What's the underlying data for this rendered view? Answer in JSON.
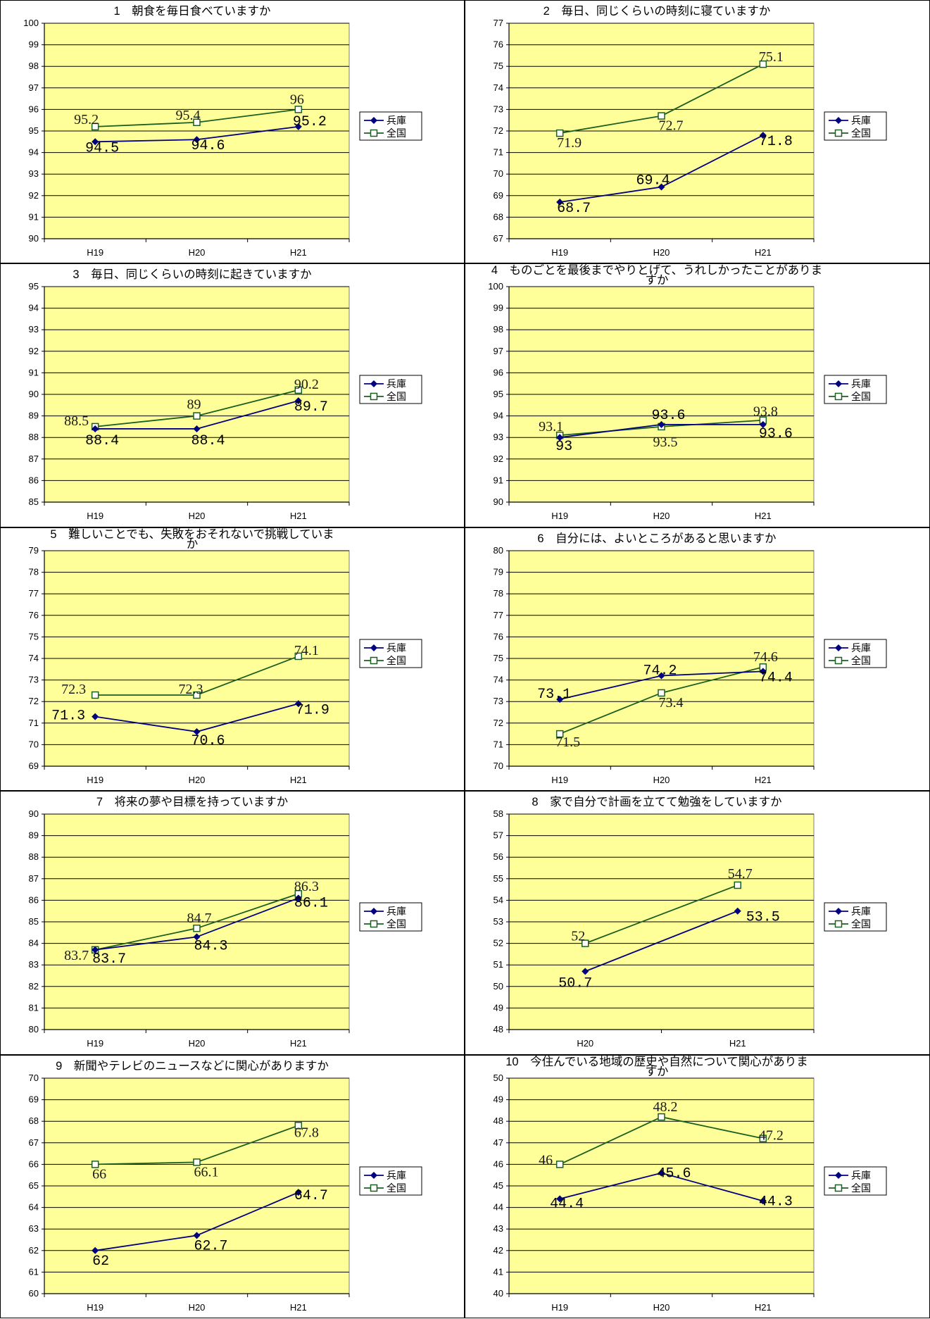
{
  "chart_data": [
    {
      "type": "line",
      "title_lines": [
        "1　朝食を毎日食べていますか"
      ],
      "categories": [
        "H19",
        "H20",
        "H21"
      ],
      "ylim": [
        90,
        100
      ],
      "series": [
        {
          "name": "兵庫",
          "values": [
            94.5,
            94.6,
            95.2
          ],
          "labels": [
            "94.5",
            "94.6",
            "95.2"
          ]
        },
        {
          "name": "全国",
          "values": [
            95.2,
            95.4,
            96
          ],
          "labels": [
            "95.2",
            "95.4",
            "96"
          ]
        }
      ]
    },
    {
      "type": "line",
      "title_lines": [
        "2　毎日、同じくらいの時刻に寝ていますか"
      ],
      "categories": [
        "H19",
        "H20",
        "H21"
      ],
      "ylim": [
        67,
        77
      ],
      "series": [
        {
          "name": "兵庫",
          "values": [
            68.7,
            69.4,
            71.8
          ],
          "labels": [
            "68.7",
            "69.4",
            "71.8"
          ]
        },
        {
          "name": "全国",
          "values": [
            71.9,
            72.7,
            75.1
          ],
          "labels": [
            "71.9",
            "72.7",
            "75.1"
          ]
        }
      ]
    },
    {
      "type": "line",
      "title_lines": [
        "3　毎日、同じくらいの時刻に起きていますか"
      ],
      "categories": [
        "H19",
        "H20",
        "H21"
      ],
      "ylim": [
        85,
        95
      ],
      "series": [
        {
          "name": "兵庫",
          "values": [
            88.4,
            88.4,
            89.7
          ],
          "labels": [
            "88.4",
            "88.4",
            "89.7"
          ]
        },
        {
          "name": "全国",
          "values": [
            88.5,
            89,
            90.2
          ],
          "labels": [
            "88.5",
            "89",
            "90.2"
          ]
        }
      ]
    },
    {
      "type": "line",
      "title_lines": [
        "4　ものごとを最後までやりとげて、うれしかったことがありま",
        "すか"
      ],
      "categories": [
        "H19",
        "H20",
        "H21"
      ],
      "ylim": [
        90,
        100
      ],
      "series": [
        {
          "name": "兵庫",
          "values": [
            93,
            93.6,
            93.6
          ],
          "labels": [
            "93",
            "93.6",
            "93.6"
          ]
        },
        {
          "name": "全国",
          "values": [
            93.1,
            93.5,
            93.8
          ],
          "labels": [
            "93.1",
            "93.5",
            "93.8"
          ]
        }
      ]
    },
    {
      "type": "line",
      "title_lines": [
        "5　難しいことでも、失敗をおそれないで挑戦していま",
        "か"
      ],
      "categories": [
        "H19",
        "H20",
        "H21"
      ],
      "ylim": [
        69,
        79
      ],
      "series": [
        {
          "name": "兵庫",
          "values": [
            71.3,
            70.6,
            71.9
          ],
          "labels": [
            "71.3",
            "70.6",
            "71.9"
          ]
        },
        {
          "name": "全国",
          "values": [
            72.3,
            72.3,
            74.1
          ],
          "labels": [
            "72.3",
            "72.3",
            "74.1"
          ]
        }
      ]
    },
    {
      "type": "line",
      "title_lines": [
        "6　自分には、よいところがあると思いますか"
      ],
      "categories": [
        "H19",
        "H20",
        "H21"
      ],
      "ylim": [
        70,
        80
      ],
      "series": [
        {
          "name": "兵庫",
          "values": [
            73.1,
            74.2,
            74.4
          ],
          "labels": [
            "73.1",
            "74.2",
            "74.4"
          ]
        },
        {
          "name": "全国",
          "values": [
            71.5,
            73.4,
            74.6
          ],
          "labels": [
            "71.5",
            "73.4",
            "74.6"
          ]
        }
      ]
    },
    {
      "type": "line",
      "title_lines": [
        "7　将来の夢や目標を持っていますか"
      ],
      "categories": [
        "H19",
        "H20",
        "H21"
      ],
      "ylim": [
        80,
        90
      ],
      "series": [
        {
          "name": "兵庫",
          "values": [
            83.7,
            84.3,
            86.1
          ],
          "labels": [
            "83.7",
            "84.3",
            "86.1"
          ]
        },
        {
          "name": "全国",
          "values": [
            83.7,
            84.7,
            86.3
          ],
          "labels": [
            "83.7",
            "84.7",
            "86.3"
          ]
        }
      ]
    },
    {
      "type": "line",
      "title_lines": [
        "8　家で自分で計画を立てて勉強をしていますか"
      ],
      "categories": [
        "H20",
        "H21"
      ],
      "ylim": [
        48,
        58
      ],
      "series": [
        {
          "name": "兵庫",
          "values": [
            50.7,
            53.5
          ],
          "labels": [
            "50.7",
            "53.5"
          ]
        },
        {
          "name": "全国",
          "values": [
            52,
            54.7
          ],
          "labels": [
            "52",
            "54.7"
          ]
        }
      ]
    },
    {
      "type": "line",
      "title_lines": [
        "9　新聞やテレビのニュースなどに関心がありますか"
      ],
      "categories": [
        "H19",
        "H20",
        "H21"
      ],
      "ylim": [
        60,
        70
      ],
      "series": [
        {
          "name": "兵庫",
          "values": [
            62,
            62.7,
            64.7
          ],
          "labels": [
            "62",
            "62.7",
            "64.7"
          ]
        },
        {
          "name": "全国",
          "values": [
            66,
            66.1,
            67.8
          ],
          "labels": [
            "66",
            "66.1",
            "67.8"
          ]
        }
      ]
    },
    {
      "type": "line",
      "title_lines": [
        "10　今住んでいる地域の歴史や自然について関心がありま",
        "すか"
      ],
      "categories": [
        "H19",
        "H20",
        "H21"
      ],
      "ylim": [
        40,
        50
      ],
      "series": [
        {
          "name": "兵庫",
          "values": [
            44.4,
            45.6,
            44.3
          ],
          "labels": [
            "44.4",
            "45.6",
            "44.3"
          ]
        },
        {
          "name": "全国",
          "values": [
            46,
            48.2,
            47.2
          ],
          "labels": [
            "46",
            "48.2",
            "47.2"
          ]
        }
      ]
    }
  ],
  "colors": {
    "plot_bg": "#FFFF99",
    "hyogo": "#000080",
    "zenkoku": "#1B5E20",
    "grid": "#000000"
  },
  "legend": {
    "hyogo_label": "兵庫",
    "zenkoku_label": "全国",
    "placement": "right",
    "hyogo_marker": "diamond",
    "zenkoku_marker": "square"
  },
  "grid": true
}
